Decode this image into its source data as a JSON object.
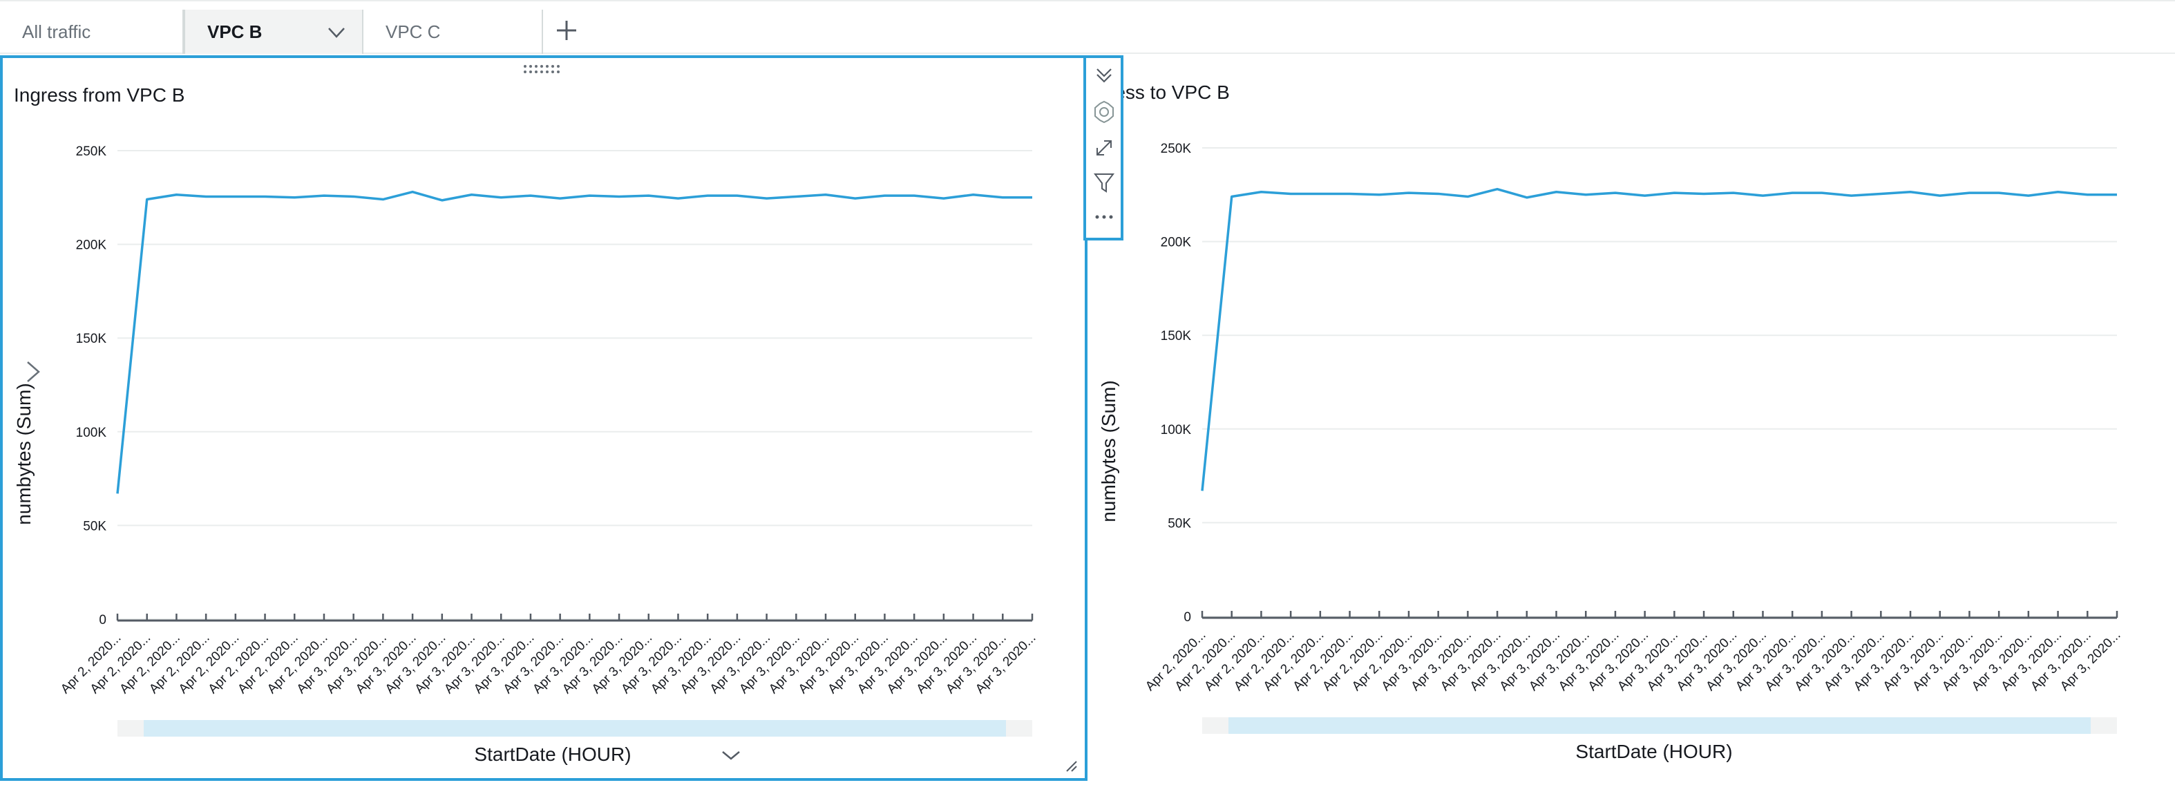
{
  "tabs": [
    {
      "label": "All traffic",
      "active": false
    },
    {
      "label": "VPC B",
      "active": true
    },
    {
      "label": "VPC C",
      "active": false
    }
  ],
  "add_tab_icon": "plus-icon",
  "colors": {
    "accent": "#2c9fd8",
    "line": "#2c9fd8",
    "grid": "#eaeded",
    "scrollbar": "#d4ecf7"
  },
  "visual_toolbar": {
    "icons": [
      "collapse-icon",
      "gear-icon",
      "expand-icon",
      "filter-icon",
      "more-icon"
    ]
  },
  "visuals": [
    {
      "title": "Ingress from VPC B",
      "x_axis_title": "StartDate (HOUR)",
      "y_axis_title": "numbytes (Sum)",
      "selected": true
    },
    {
      "title": "ress to VPC B",
      "x_axis_title": "StartDate (HOUR)",
      "y_axis_title": "numbytes (Sum)",
      "selected": false
    }
  ],
  "chart_data": [
    {
      "type": "line",
      "title": "Ingress from VPC B",
      "xlabel": "StartDate (HOUR)",
      "ylabel": "numbytes (Sum)",
      "ylim": [
        0,
        250000
      ],
      "y_ticks": [
        "0",
        "50K",
        "100K",
        "150K",
        "200K",
        "250K"
      ],
      "y_tick_values": [
        0,
        50000,
        100000,
        150000,
        200000,
        250000
      ],
      "x_tick_labels": [
        "Apr 2, 2020...",
        "Apr 2, 2020...",
        "Apr 2, 2020...",
        "Apr 2, 2020...",
        "Apr 2, 2020...",
        "Apr 2, 2020...",
        "Apr 2, 2020...",
        "Apr 2, 2020...",
        "Apr 3, 2020...",
        "Apr 3, 2020...",
        "Apr 3, 2020...",
        "Apr 3, 2020...",
        "Apr 3, 2020...",
        "Apr 3, 2020...",
        "Apr 3, 2020...",
        "Apr 3, 2020...",
        "Apr 3, 2020...",
        "Apr 3, 2020...",
        "Apr 3, 2020...",
        "Apr 3, 2020...",
        "Apr 3, 2020...",
        "Apr 3, 2020...",
        "Apr 3, 2020...",
        "Apr 3, 2020...",
        "Apr 3, 2020...",
        "Apr 3, 2020...",
        "Apr 3, 2020...",
        "Apr 3, 2020...",
        "Apr 3, 2020...",
        "Apr 3, 2020...",
        "Apr 3, 2020...",
        "Apr 3, 2020..."
      ],
      "values": [
        67000,
        224000,
        226500,
        225500,
        225500,
        225500,
        225000,
        226000,
        225500,
        224000,
        228000,
        223500,
        226500,
        225000,
        226000,
        224500,
        226000,
        225500,
        226000,
        224500,
        226000,
        226000,
        224500,
        225500,
        226500,
        224500,
        226000,
        226000,
        224500,
        226500,
        225000,
        225000
      ],
      "grid": true,
      "legend": "none"
    },
    {
      "type": "line",
      "title": "ress to VPC B",
      "xlabel": "StartDate (HOUR)",
      "ylabel": "numbytes (Sum)",
      "ylim": [
        0,
        250000
      ],
      "y_ticks": [
        "0",
        "50K",
        "100K",
        "150K",
        "200K",
        "250K"
      ],
      "y_tick_values": [
        0,
        50000,
        100000,
        150000,
        200000,
        250000
      ],
      "x_tick_labels": [
        "Apr 2, 2020...",
        "Apr 2, 2020...",
        "Apr 2, 2020...",
        "Apr 2, 2020...",
        "Apr 2, 2020...",
        "Apr 2, 2020...",
        "Apr 2, 2020...",
        "Apr 2, 2020...",
        "Apr 3, 2020...",
        "Apr 3, 2020...",
        "Apr 3, 2020...",
        "Apr 3, 2020...",
        "Apr 3, 2020...",
        "Apr 3, 2020...",
        "Apr 3, 2020...",
        "Apr 3, 2020...",
        "Apr 3, 2020...",
        "Apr 3, 2020...",
        "Apr 3, 2020...",
        "Apr 3, 2020...",
        "Apr 3, 2020...",
        "Apr 3, 2020...",
        "Apr 3, 2020...",
        "Apr 3, 2020...",
        "Apr 3, 2020...",
        "Apr 3, 2020...",
        "Apr 3, 2020...",
        "Apr 3, 2020...",
        "Apr 3, 2020...",
        "Apr 3, 2020...",
        "Apr 3, 2020...",
        "Apr 3, 2020..."
      ],
      "values": [
        67000,
        224000,
        226500,
        225500,
        225500,
        225500,
        225000,
        226000,
        225500,
        224000,
        228000,
        223500,
        226500,
        225000,
        226000,
        224500,
        226000,
        225500,
        226000,
        224500,
        226000,
        226000,
        224500,
        225500,
        226500,
        224500,
        226000,
        226000,
        224500,
        226500,
        225000,
        225000
      ],
      "grid": true,
      "legend": "none"
    }
  ]
}
